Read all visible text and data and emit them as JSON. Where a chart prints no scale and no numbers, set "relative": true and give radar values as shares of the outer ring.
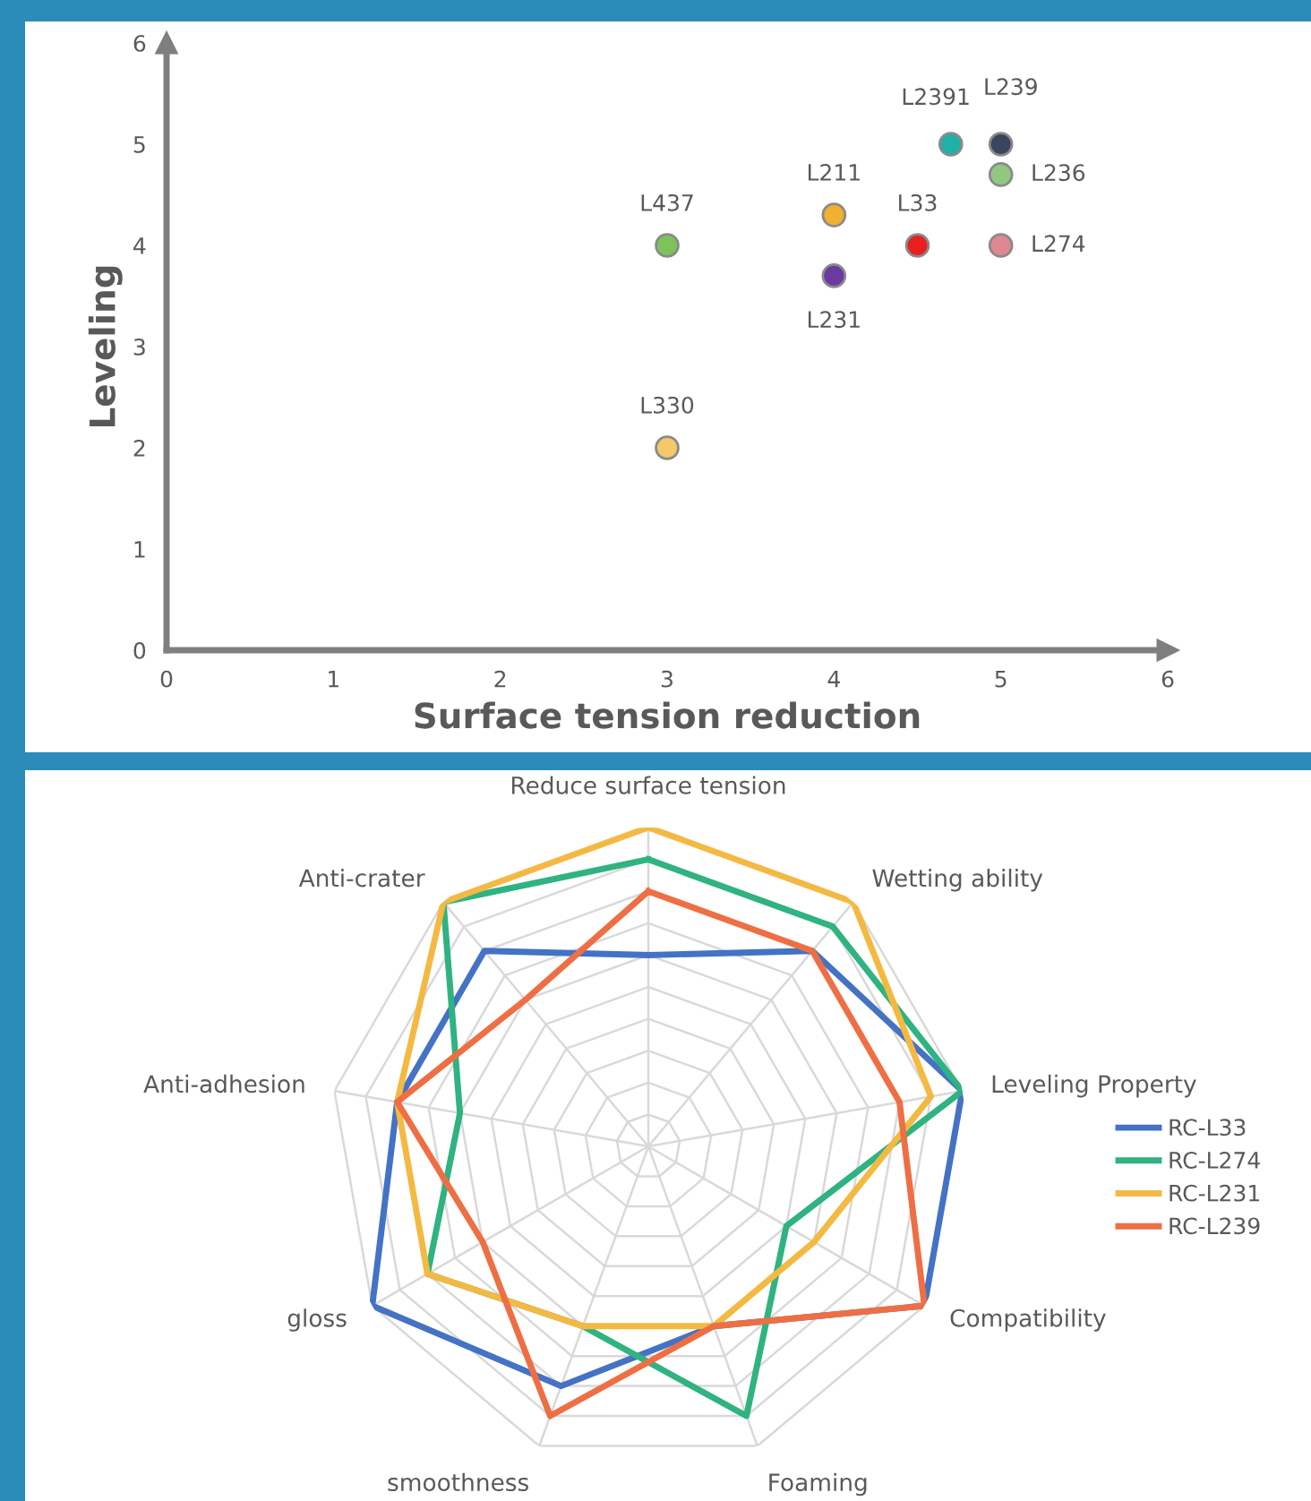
{
  "chart_data": [
    {
      "type": "scatter",
      "xlabel": "Surface tension reduction",
      "ylabel": "Leveling",
      "xlim": [
        0,
        6
      ],
      "ylim": [
        0,
        6
      ],
      "xticks": [
        0,
        1,
        2,
        3,
        4,
        5,
        6
      ],
      "yticks": [
        0,
        1,
        2,
        3,
        4,
        5,
        6
      ],
      "grid": false,
      "marker": "circle",
      "series": [
        {
          "name": "L437",
          "color": "#7dc35a",
          "x": [
            3
          ],
          "values": [
            4
          ]
        },
        {
          "name": "L330",
          "color": "#f5c86a",
          "x": [
            3
          ],
          "values": [
            2
          ]
        },
        {
          "name": "L211",
          "color": "#f0b030",
          "x": [
            4
          ],
          "values": [
            4.3
          ]
        },
        {
          "name": "L231",
          "color": "#6a3aa0",
          "x": [
            4
          ],
          "values": [
            3.7
          ]
        },
        {
          "name": "L33",
          "color": "#e82020",
          "x": [
            4.5
          ],
          "values": [
            4
          ]
        },
        {
          "name": "L2391",
          "color": "#20b0a8",
          "x": [
            4.7
          ],
          "values": [
            5
          ]
        },
        {
          "name": "L239",
          "color": "#3a4560",
          "x": [
            5
          ],
          "values": [
            5
          ]
        },
        {
          "name": "L236",
          "color": "#90c880",
          "x": [
            5
          ],
          "values": [
            4.7
          ]
        },
        {
          "name": "L274",
          "color": "#e08890",
          "x": [
            5
          ],
          "values": [
            4
          ]
        }
      ]
    },
    {
      "type": "radar",
      "relative": true,
      "grid": true,
      "legend": "right",
      "categories": [
        "Reduce surface tension",
        "Wetting ability",
        "Leveling Property",
        "Compatibility",
        "Foaming",
        "smoothness",
        "gloss",
        "Anti-adhesion",
        "Anti-crater"
      ],
      "series": [
        {
          "name": "RC-L33",
          "color": "#4472c4",
          "values": [
            0.6,
            0.8,
            1.0,
            1.0,
            0.6,
            0.8,
            1.0,
            0.8,
            0.8
          ]
        },
        {
          "name": "RC-L274",
          "color": "#2fb380",
          "values": [
            0.9,
            0.9,
            1.0,
            0.5,
            0.9,
            0.6,
            0.8,
            0.6,
            1.0
          ]
        },
        {
          "name": "RC-L231",
          "color": "#f4b942",
          "values": [
            1.0,
            1.0,
            0.9,
            0.6,
            0.6,
            0.6,
            0.8,
            0.8,
            1.0
          ]
        },
        {
          "name": "RC-L239",
          "color": "#ee6f44",
          "values": [
            0.8,
            0.8,
            0.8,
            1.0,
            0.6,
            0.9,
            0.6,
            0.8,
            0.6
          ]
        }
      ]
    }
  ]
}
